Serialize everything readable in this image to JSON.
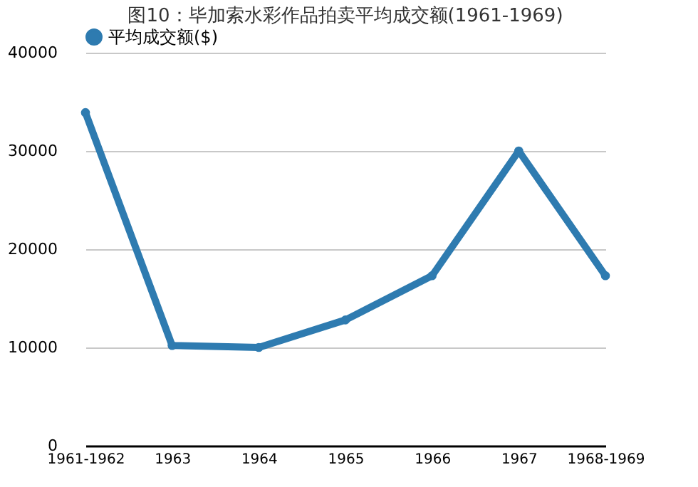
{
  "chart_data": {
    "type": "line",
    "title": "图10：毕加索水彩作品拍卖平均成交额(1961-1969)",
    "categories": [
      "1961-1962",
      "1963",
      "1964",
      "1965",
      "1966",
      "1967",
      "1968-1969"
    ],
    "series": [
      {
        "name": "平均成交额($)",
        "color": "#2e7bb0",
        "values": [
          33900,
          10200,
          10000,
          12800,
          17300,
          30000,
          17300
        ]
      }
    ],
    "ylim": [
      0,
      40000
    ],
    "yticks": [
      0,
      10000,
      20000,
      30000,
      40000
    ],
    "grid": "y",
    "legend": "top",
    "marker": "circle",
    "line_style": "solid"
  }
}
